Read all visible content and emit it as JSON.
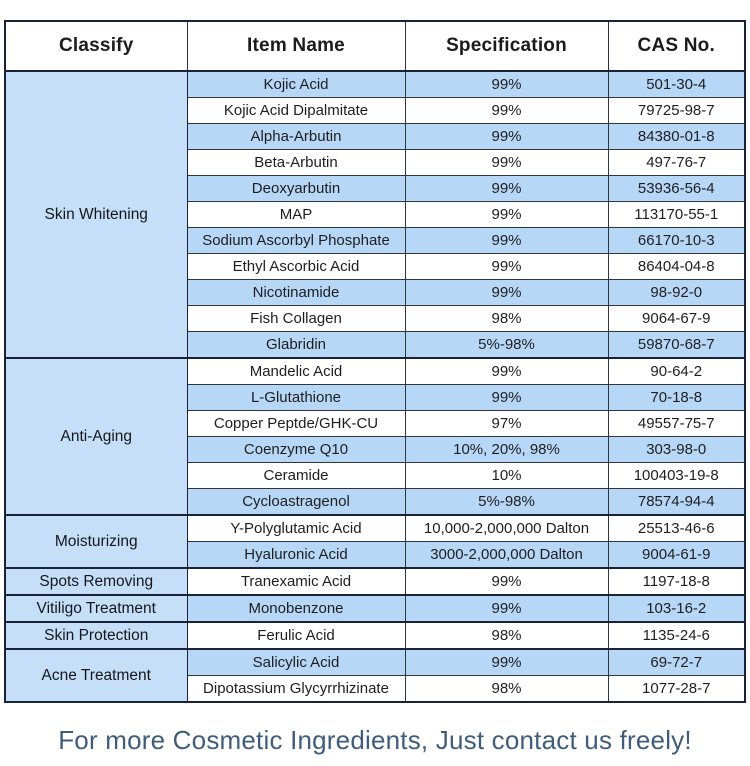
{
  "colors": {
    "stripe_blue": "#b7d7f6",
    "classify_blue": "#c6dff8",
    "row_white": "#ffffff",
    "border_dark": "#1a2238",
    "border_thin": "#30363f",
    "footer_text": "#3f5d7a",
    "cell_text": "#1e1e22"
  },
  "table": {
    "headers": {
      "classify": "Classify",
      "item": "Item Name",
      "spec": "Specification",
      "cas": "CAS No."
    },
    "sections": [
      {
        "classify": "Skin Whitening",
        "rows": [
          {
            "item": "Kojic Acid",
            "spec": "99%",
            "cas": "501-30-4"
          },
          {
            "item": "Kojic Acid Dipalmitate",
            "spec": "99%",
            "cas": "79725-98-7"
          },
          {
            "item": "Alpha-Arbutin",
            "spec": "99%",
            "cas": "84380-01-8"
          },
          {
            "item": "Beta-Arbutin",
            "spec": "99%",
            "cas": "497-76-7"
          },
          {
            "item": "Deoxyarbutin",
            "spec": "99%",
            "cas": "53936-56-4"
          },
          {
            "item": "MAP",
            "spec": "99%",
            "cas": "113170-55-1"
          },
          {
            "item": "Sodium Ascorbyl Phosphate",
            "spec": "99%",
            "cas": "66170-10-3"
          },
          {
            "item": "Ethyl Ascorbic Acid",
            "spec": "99%",
            "cas": "86404-04-8"
          },
          {
            "item": "Nicotinamide",
            "spec": "99%",
            "cas": "98-92-0"
          },
          {
            "item": "Fish Collagen",
            "spec": "98%",
            "cas": "9064-67-9"
          },
          {
            "item": "Glabridin",
            "spec": "5%-98%",
            "cas": "59870-68-7"
          }
        ]
      },
      {
        "classify": "Anti-Aging",
        "rows": [
          {
            "item": "Mandelic Acid",
            "spec": "99%",
            "cas": "90-64-2"
          },
          {
            "item": "L-Glutathione",
            "spec": "99%",
            "cas": "70-18-8"
          },
          {
            "item": "Copper Peptde/GHK-CU",
            "spec": "97%",
            "cas": "49557-75-7"
          },
          {
            "item": "Coenzyme Q10",
            "spec": "10%, 20%, 98%",
            "cas": "303-98-0"
          },
          {
            "item": "Ceramide",
            "spec": "10%",
            "cas": "100403-19-8"
          },
          {
            "item": "Cycloastragenol",
            "spec": "5%-98%",
            "cas": "78574-94-4"
          }
        ]
      },
      {
        "classify": "Moisturizing",
        "rows": [
          {
            "item": "Y-Polyglutamic Acid",
            "spec": "10,000-2,000,000 Dalton",
            "cas": "25513-46-6"
          },
          {
            "item": "Hyaluronic Acid",
            "spec": "3000-2,000,000 Dalton",
            "cas": "9004-61-9"
          }
        ]
      },
      {
        "classify": "Spots Removing",
        "rows": [
          {
            "item": "Tranexamic Acid",
            "spec": "99%",
            "cas": "1197-18-8"
          }
        ]
      },
      {
        "classify": "Vitiligo Treatment",
        "rows": [
          {
            "item": "Monobenzone",
            "spec": "99%",
            "cas": "103-16-2"
          }
        ]
      },
      {
        "classify": "Skin Protection",
        "rows": [
          {
            "item": "Ferulic Acid",
            "spec": "98%",
            "cas": "1135-24-6"
          }
        ]
      },
      {
        "classify": "Acne Treatment",
        "rows": [
          {
            "item": "Salicylic Acid",
            "spec": "99%",
            "cas": "69-72-7"
          },
          {
            "item": "Dipotassium Glycyrrhizinate",
            "spec": "98%",
            "cas": "1077-28-7"
          }
        ]
      }
    ]
  },
  "footer": {
    "text": "For more Cosmetic Ingredients, Just contact us freely!"
  }
}
